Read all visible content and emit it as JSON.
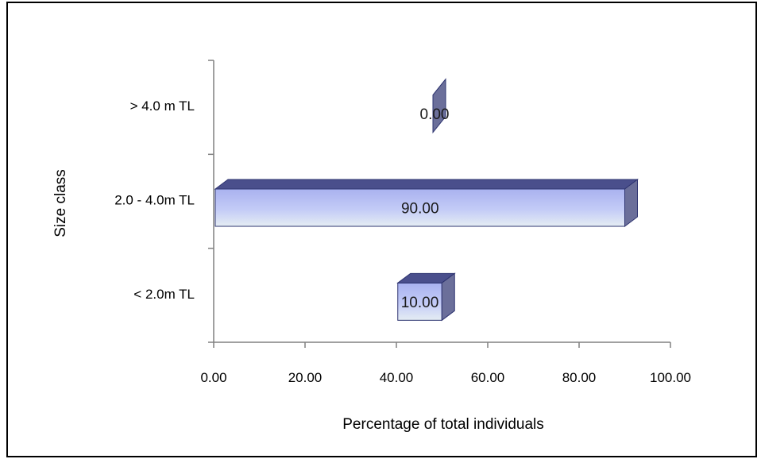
{
  "chart_data": {
    "type": "bar",
    "orientation": "horizontal",
    "style": "3d-cylinder-box",
    "title": "",
    "xlabel": "Percentage of total individuals",
    "ylabel": "Size class",
    "categories": [
      "< 2.0m TL",
      "2.0 - 4.0m TL",
      "> 4.0 m TL"
    ],
    "values": [
      10.0,
      90.0,
      0.0
    ],
    "data_labels": [
      "10.00",
      "90.00",
      "0.00"
    ],
    "xlim": [
      0,
      100
    ],
    "xticks": [
      "0.00",
      "20.00",
      "40.00",
      "60.00",
      "80.00",
      "100.00"
    ],
    "grid": false,
    "legend": "none",
    "colors": {
      "bar_front_top": "#a9b2ef",
      "bar_front_mid": "#c3cbf7",
      "bar_front_bottom": "#e5edf3",
      "bar_top": "#4a4f8c",
      "bar_side": "#6b6f9a",
      "bar_outline": "#2e3470",
      "axis": "#808080"
    }
  }
}
